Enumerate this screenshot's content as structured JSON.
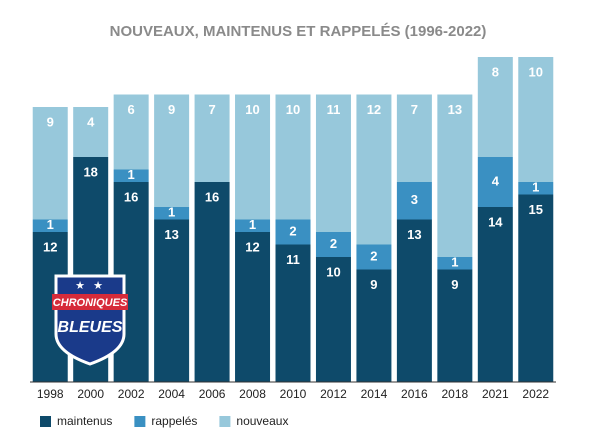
{
  "chart_data": {
    "type": "stacked_bar",
    "title": "NOUVEAUX, MAINTENUS ET RAPPELÉS (1996-2022)",
    "categories": [
      "1998",
      "2000",
      "2002",
      "2004",
      "2006",
      "2008",
      "2010",
      "2012",
      "2014",
      "2016",
      "2018",
      "2021",
      "2022"
    ],
    "series": [
      {
        "name": "maintenus",
        "color": "#0e4a6a",
        "values": [
          12,
          18,
          16,
          13,
          16,
          12,
          11,
          10,
          9,
          13,
          9,
          14,
          15
        ]
      },
      {
        "name": "rappelés",
        "color": "#3a90c2",
        "values": [
          1,
          0,
          1,
          1,
          0,
          1,
          2,
          2,
          2,
          3,
          1,
          4,
          1
        ]
      },
      {
        "name": "nouveaux",
        "color": "#97c8db",
        "values": [
          9,
          4,
          6,
          9,
          7,
          10,
          10,
          11,
          12,
          7,
          13,
          8,
          10
        ]
      }
    ],
    "legend": "bottom-left"
  },
  "logo": {
    "line1": "CHRONIQUES",
    "line2": "BLEUES"
  }
}
